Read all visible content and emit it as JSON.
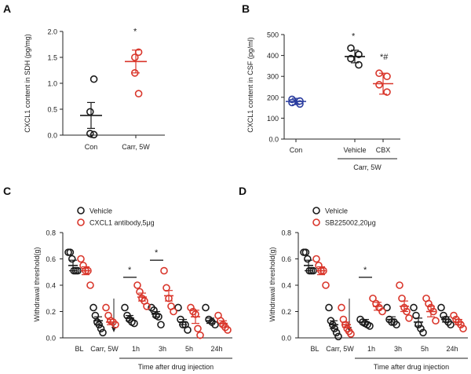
{
  "colors": {
    "black": "#1a1a1a",
    "red": "#d9362b",
    "blue": "#2a3c9e"
  },
  "chart_data": [
    {
      "panel": "A",
      "type": "scatter",
      "ylabel": "CXCL1 content in SDH (pg/mg)",
      "ylim": [
        0,
        2.0
      ],
      "yticks": [
        "0.0",
        "0.5",
        "1.0",
        "1.5",
        "2.0"
      ],
      "categories": [
        "Con",
        "Carr, 5W"
      ],
      "series": [
        {
          "category": "Con",
          "color": "black",
          "mean": 0.38,
          "sem": 0.25,
          "points": [
            1.08,
            0.45,
            0.03,
            0.01
          ]
        },
        {
          "category": "Carr, 5W",
          "color": "red",
          "mean": 1.42,
          "sem": 0.22,
          "points": [
            1.6,
            1.5,
            1.2,
            0.8
          ]
        }
      ],
      "annotations": [
        {
          "category": "Carr, 5W",
          "text": "*",
          "y": 1.95
        }
      ]
    },
    {
      "panel": "B",
      "type": "scatter",
      "ylabel": "CXCL1 content in CSF (pg/ml)",
      "ylim": [
        0,
        500
      ],
      "yticks": [
        "0.0",
        "100",
        "200",
        "300",
        "400",
        "500"
      ],
      "categories": [
        "Con",
        "Vehicle",
        "CBX"
      ],
      "group_label": "Carr, 5W",
      "series": [
        {
          "category": "Con",
          "color": "blue",
          "mean": 180,
          "sem": 15,
          "points": [
            190,
            182,
            175,
            168
          ]
        },
        {
          "category": "Vehicle",
          "color": "black",
          "mean": 395,
          "sem": 30,
          "points": [
            435,
            405,
            385,
            355
          ]
        },
        {
          "category": "CBX",
          "color": "red",
          "mean": 265,
          "sem": 50,
          "points": [
            315,
            300,
            260,
            225
          ]
        }
      ],
      "annotations": [
        {
          "category": "Vehicle",
          "text": "*",
          "y": 480
        },
        {
          "category": "CBX",
          "text": "*#",
          "y": 380
        }
      ]
    },
    {
      "panel": "C",
      "type": "scatter",
      "ylabel": "Withdrawal threshold(g)",
      "ylim": [
        0,
        0.8
      ],
      "yticks": [
        "0.0",
        "0.2",
        "0.4",
        "0.6",
        "0.8"
      ],
      "categories": [
        "BL",
        "Carr, 5W",
        "1h",
        "3h",
        "5h",
        "24h"
      ],
      "xgroup_label": "Time after drug injection",
      "legend": [
        "Vehicle",
        "CXCL1 antibody,5μg"
      ],
      "series": [
        {
          "name": "Vehicle",
          "color": "black",
          "groups": [
            {
              "mean": 0.55,
              "sem": 0.04,
              "points": [
                0.65,
                0.65,
                0.6,
                0.51,
                0.51,
                0.51
              ]
            },
            {
              "mean": 0.13,
              "sem": 0.03,
              "points": [
                0.23,
                0.17,
                0.12,
                0.1,
                0.07,
                0.04
              ]
            },
            {
              "mean": 0.15,
              "sem": 0.02,
              "points": [
                0.23,
                0.17,
                0.14,
                0.12,
                0.11
              ]
            },
            {
              "mean": 0.18,
              "sem": 0.02,
              "points": [
                0.23,
                0.21,
                0.17,
                0.16,
                0.1
              ]
            },
            {
              "mean": 0.12,
              "sem": 0.02,
              "points": [
                0.23,
                0.14,
                0.1,
                0.1,
                0.06
              ]
            },
            {
              "mean": 0.13,
              "sem": 0.02,
              "points": [
                0.23,
                0.14,
                0.12,
                0.1
              ]
            }
          ]
        },
        {
          "name": "CXCL1 antibody,5μg",
          "color": "red",
          "groups": [
            {
              "mean": 0.51,
              "sem": 0.03,
              "points": [
                0.6,
                0.55,
                0.51,
                0.51,
                0.4
              ]
            },
            {
              "mean": 0.12,
              "sem": 0.02,
              "points": [
                0.23,
                0.17,
                0.13,
                0.12,
                0.1
              ]
            },
            {
              "mean": 0.31,
              "sem": 0.03,
              "points": [
                0.4,
                0.35,
                0.3,
                0.28,
                0.24
              ]
            },
            {
              "mean": 0.32,
              "sem": 0.04,
              "points": [
                0.51,
                0.38,
                0.3,
                0.24,
                0.2
              ]
            },
            {
              "mean": 0.16,
              "sem": 0.05,
              "points": [
                0.23,
                0.2,
                0.18,
                0.07,
                0.02
              ]
            },
            {
              "mean": 0.11,
              "sem": 0.02,
              "points": [
                0.17,
                0.13,
                0.1,
                0.08,
                0.06
              ]
            }
          ]
        }
      ],
      "annotations": [
        {
          "category": "1h",
          "text": "*",
          "y": 0.46
        },
        {
          "category": "3h",
          "text": "*",
          "y": 0.59
        }
      ]
    },
    {
      "panel": "D",
      "type": "scatter",
      "ylabel": "Withdrawal threshold(g)",
      "ylim": [
        0,
        0.8
      ],
      "yticks": [
        "0.0",
        "0.2",
        "0.4",
        "0.6",
        "0.8"
      ],
      "categories": [
        "BL",
        "Carr, 5W",
        "1h",
        "3h",
        "5h",
        "24h"
      ],
      "xgroup_label": "Time after drug injection",
      "legend": [
        "Vehicle",
        "SB225002,20μg"
      ],
      "series": [
        {
          "name": "Vehicle",
          "color": "black",
          "groups": [
            {
              "mean": 0.55,
              "sem": 0.04,
              "points": [
                0.65,
                0.65,
                0.6,
                0.51,
                0.51,
                0.51
              ]
            },
            {
              "mean": 0.1,
              "sem": 0.03,
              "points": [
                0.23,
                0.13,
                0.1,
                0.07,
                0.04,
                0.01
              ]
            },
            {
              "mean": 0.12,
              "sem": 0.02,
              "points": [
                0.14,
                0.12,
                0.11,
                0.1,
                0.09
              ]
            },
            {
              "mean": 0.14,
              "sem": 0.02,
              "points": [
                0.23,
                0.14,
                0.12,
                0.12,
                0.1
              ]
            },
            {
              "mean": 0.12,
              "sem": 0.03,
              "points": [
                0.23,
                0.17,
                0.1,
                0.07,
                0.04
              ]
            },
            {
              "mean": 0.14,
              "sem": 0.02,
              "points": [
                0.23,
                0.17,
                0.14,
                0.12,
                0.1
              ]
            }
          ]
        },
        {
          "name": "SB225002,20μg",
          "color": "red",
          "groups": [
            {
              "mean": 0.51,
              "sem": 0.03,
              "points": [
                0.6,
                0.55,
                0.51,
                0.51,
                0.4
              ]
            },
            {
              "mean": 0.1,
              "sem": 0.02,
              "points": [
                0.23,
                0.14,
                0.1,
                0.07,
                0.05,
                0.03
              ]
            },
            {
              "mean": 0.24,
              "sem": 0.03,
              "points": [
                0.3,
                0.26,
                0.23,
                0.2
              ]
            },
            {
              "mean": 0.24,
              "sem": 0.04,
              "points": [
                0.4,
                0.3,
                0.23,
                0.2,
                0.15
              ]
            },
            {
              "mean": 0.2,
              "sem": 0.04,
              "points": [
                0.3,
                0.26,
                0.23,
                0.2,
                0.13
              ]
            },
            {
              "mean": 0.12,
              "sem": 0.02,
              "points": [
                0.17,
                0.14,
                0.12,
                0.1,
                0.07
              ]
            }
          ]
        }
      ],
      "annotations": [
        {
          "category": "1h",
          "text": "*",
          "y": 0.46
        }
      ]
    }
  ]
}
